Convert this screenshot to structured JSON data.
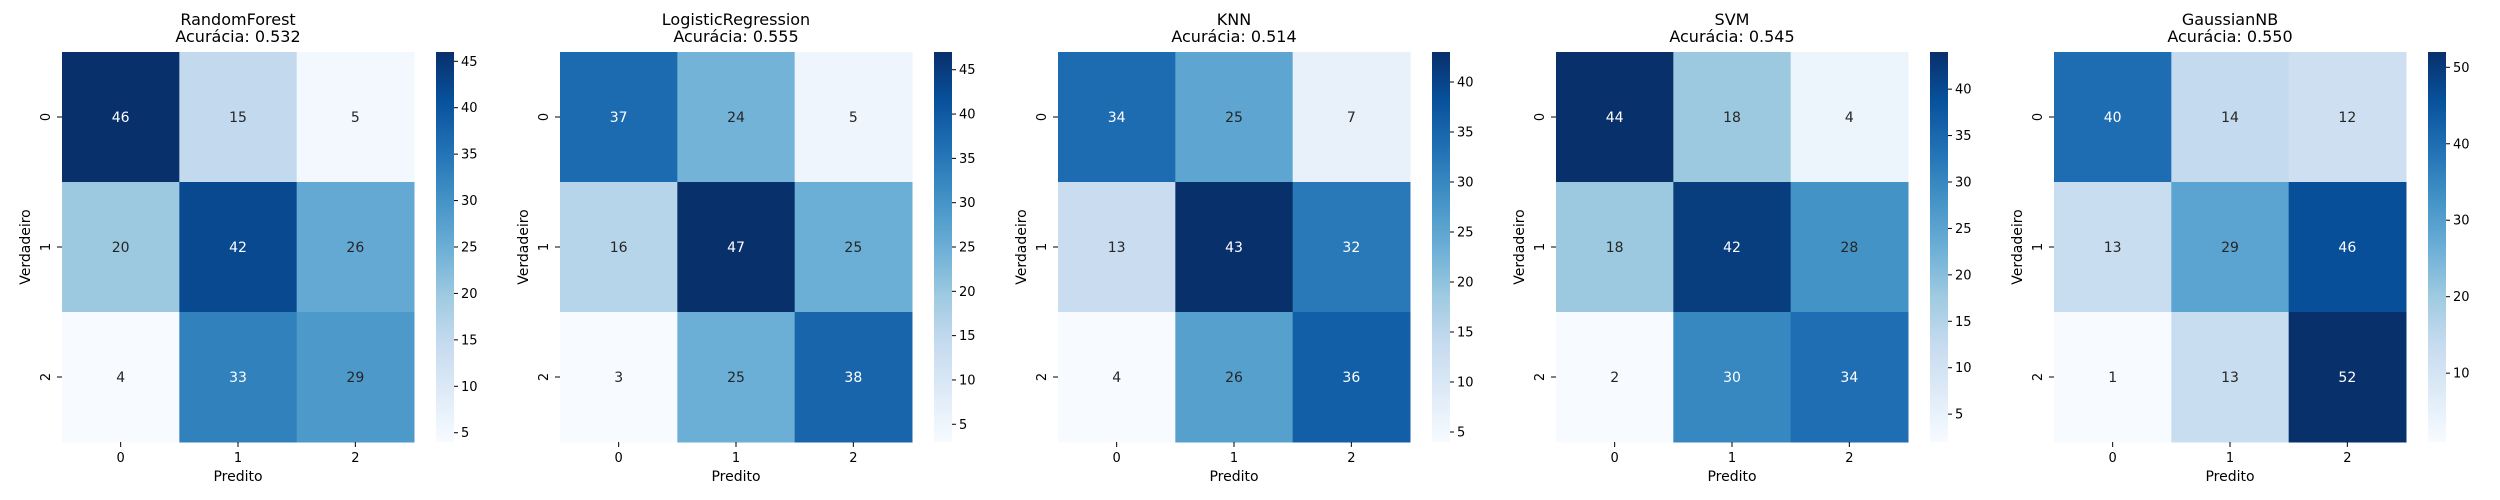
{
  "chart_data": [
    {
      "type": "heatmap",
      "title": "RandomForest",
      "subtitle": "Acurácia: 0.532",
      "xlabel": "Predito",
      "ylabel": "Verdadeiro",
      "x_ticks": [
        "0",
        "1",
        "2"
      ],
      "y_ticks": [
        "0",
        "1",
        "2"
      ],
      "values": [
        [
          46,
          15,
          5
        ],
        [
          20,
          42,
          26
        ],
        [
          4,
          33,
          29
        ]
      ],
      "colorbar_range": [
        4,
        46
      ],
      "colorbar_ticks": [
        5,
        10,
        15,
        20,
        25,
        30,
        35,
        40,
        45
      ]
    },
    {
      "type": "heatmap",
      "title": "LogisticRegression",
      "subtitle": "Acurácia: 0.555",
      "xlabel": "Predito",
      "ylabel": "Verdadeiro",
      "x_ticks": [
        "0",
        "1",
        "2"
      ],
      "y_ticks": [
        "0",
        "1",
        "2"
      ],
      "values": [
        [
          37,
          24,
          5
        ],
        [
          16,
          47,
          25
        ],
        [
          3,
          25,
          38
        ]
      ],
      "colorbar_range": [
        3,
        47
      ],
      "colorbar_ticks": [
        5,
        10,
        15,
        20,
        25,
        30,
        35,
        40,
        45
      ]
    },
    {
      "type": "heatmap",
      "title": "KNN",
      "subtitle": "Acurácia: 0.514",
      "xlabel": "Predito",
      "ylabel": "Verdadeiro",
      "x_ticks": [
        "0",
        "1",
        "2"
      ],
      "y_ticks": [
        "0",
        "1",
        "2"
      ],
      "values": [
        [
          34,
          25,
          7
        ],
        [
          13,
          43,
          32
        ],
        [
          4,
          26,
          36
        ]
      ],
      "colorbar_range": [
        4,
        43
      ],
      "colorbar_ticks": [
        5,
        10,
        15,
        20,
        25,
        30,
        35,
        40
      ]
    },
    {
      "type": "heatmap",
      "title": "SVM",
      "subtitle": "Acurácia: 0.545",
      "xlabel": "Predito",
      "ylabel": "Verdadeiro",
      "x_ticks": [
        "0",
        "1",
        "2"
      ],
      "y_ticks": [
        "0",
        "1",
        "2"
      ],
      "values": [
        [
          44,
          18,
          4
        ],
        [
          18,
          42,
          28
        ],
        [
          2,
          30,
          34
        ]
      ],
      "colorbar_range": [
        2,
        44
      ],
      "colorbar_ticks": [
        5,
        10,
        15,
        20,
        25,
        30,
        35,
        40
      ]
    },
    {
      "type": "heatmap",
      "title": "GaussianNB",
      "subtitle": "Acurácia: 0.550",
      "xlabel": "Predito",
      "ylabel": "Verdadeiro",
      "x_ticks": [
        "0",
        "1",
        "2"
      ],
      "y_ticks": [
        "0",
        "1",
        "2"
      ],
      "values": [
        [
          40,
          14,
          12
        ],
        [
          13,
          29,
          46
        ],
        [
          1,
          13,
          52
        ]
      ],
      "colorbar_range": [
        1,
        52
      ],
      "colorbar_ticks": [
        10,
        20,
        30,
        40,
        50
      ]
    }
  ],
  "colormap": {
    "name": "Blues",
    "stops": [
      "#f7fbff",
      "#deebf7",
      "#c6dbef",
      "#9ecae1",
      "#6baed6",
      "#4292c6",
      "#2171b5",
      "#08519c",
      "#08306b"
    ]
  }
}
